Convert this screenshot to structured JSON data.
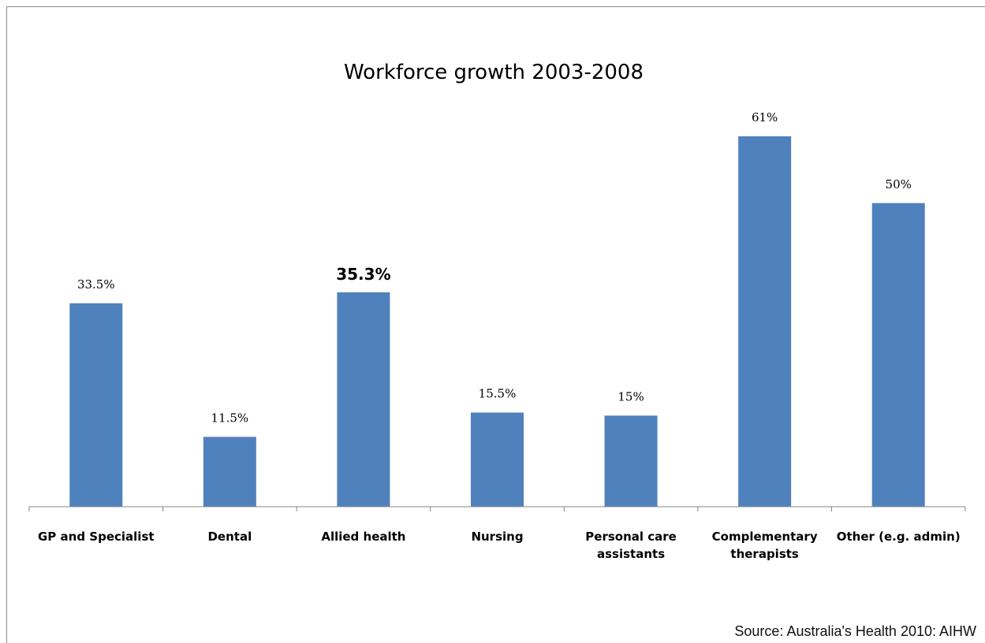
{
  "chart_data": {
    "type": "bar",
    "title": "Workforce growth 2003-2008",
    "categories": [
      [
        "GP and Specialist"
      ],
      [
        "Dental"
      ],
      [
        "Allied health"
      ],
      [
        "Nursing"
      ],
      [
        "Personal care",
        "assistants"
      ],
      [
        "Complementary",
        "therapists"
      ],
      [
        "Other  (e.g. admin)"
      ]
    ],
    "values": [
      33.5,
      11.5,
      35.3,
      15.5,
      15,
      61,
      50
    ],
    "data_labels": [
      "33.5%",
      "11.5%",
      "35.3%",
      "15.5%",
      "15%",
      "61%",
      "50%"
    ],
    "ylim": [
      0,
      61
    ],
    "bar_color": "#4f81bd",
    "axis_color": "#868686",
    "grid": false,
    "legend": "none",
    "source": "Source: Australia's Health 2010: AIHW"
  }
}
